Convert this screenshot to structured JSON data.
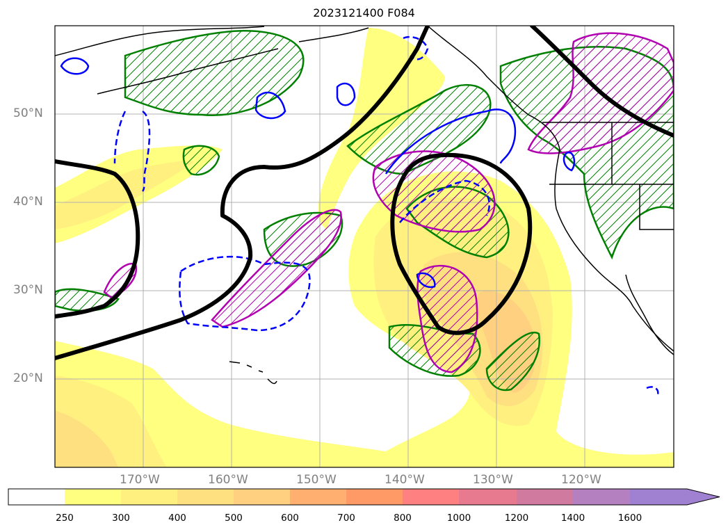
{
  "title": "2023121400 F084",
  "lat_labels": [
    "50°N",
    "40°N",
    "30°N",
    "20°N"
  ],
  "lon_labels": [
    "170°W",
    "160°W",
    "150°W",
    "140°W",
    "130°W",
    "120°W"
  ],
  "colorbar": {
    "ticks": [
      "250",
      "300",
      "400",
      "500",
      "600",
      "700",
      "800",
      "1000",
      "1200",
      "1400",
      "1600"
    ],
    "colors": [
      "#ffffff",
      "#ffff80",
      "#fff080",
      "#ffe080",
      "#ffd080",
      "#ffb070",
      "#ff9966",
      "#ff8080",
      "#e87a90",
      "#d07aa0",
      "#b480c0",
      "#a080d0"
    ],
    "extend": "max"
  },
  "map": {
    "projection": "PlateCarree",
    "lon_range": [
      -180,
      -110
    ],
    "lat_range": [
      10,
      60
    ],
    "gridlines": true,
    "colors": {
      "coast": "#000000",
      "heavy_contour": "#000000",
      "green_hatch": "#008000",
      "magenta_hatch": "#b000b0",
      "blue_contour": "#0000ff"
    }
  }
}
